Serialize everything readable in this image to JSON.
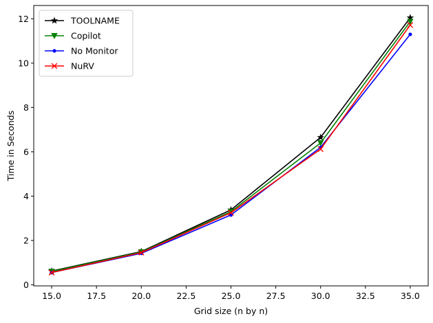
{
  "chart_data": {
    "type": "line",
    "title": "",
    "xlabel": "Grid size (n by n)",
    "ylabel": "Time in Seconds",
    "x": [
      15,
      20,
      25,
      30,
      35
    ],
    "xlim": [
      14.0,
      36.0
    ],
    "ylim": [
      -0.05,
      12.6
    ],
    "xticks": [
      15.0,
      17.5,
      20.0,
      22.5,
      25.0,
      27.5,
      30.0,
      32.5,
      35.0
    ],
    "xtick_labels": [
      "15.0",
      "17.5",
      "20.0",
      "22.5",
      "25.0",
      "27.5",
      "30.0",
      "32.5",
      "35.0"
    ],
    "yticks": [
      0,
      2,
      4,
      6,
      8,
      10,
      12
    ],
    "ytick_labels": [
      "0",
      "2",
      "4",
      "6",
      "8",
      "10",
      "12"
    ],
    "grid": false,
    "legend_position": "upper-left",
    "series": [
      {
        "name": "TOOLNAME",
        "color": "#000000",
        "marker": "star",
        "values": [
          0.62,
          1.5,
          3.38,
          6.65,
          12.05
        ]
      },
      {
        "name": "Copilot",
        "color": "#008000",
        "marker": "triangle-down",
        "values": [
          0.6,
          1.48,
          3.3,
          6.4,
          11.88
        ]
      },
      {
        "name": "No Monitor",
        "color": "#0000ff",
        "marker": "dot",
        "values": [
          0.55,
          1.42,
          3.15,
          6.2,
          11.3
        ]
      },
      {
        "name": "NuRV",
        "color": "#ff0000",
        "marker": "x",
        "values": [
          0.55,
          1.45,
          3.25,
          6.12,
          11.72
        ]
      }
    ]
  }
}
